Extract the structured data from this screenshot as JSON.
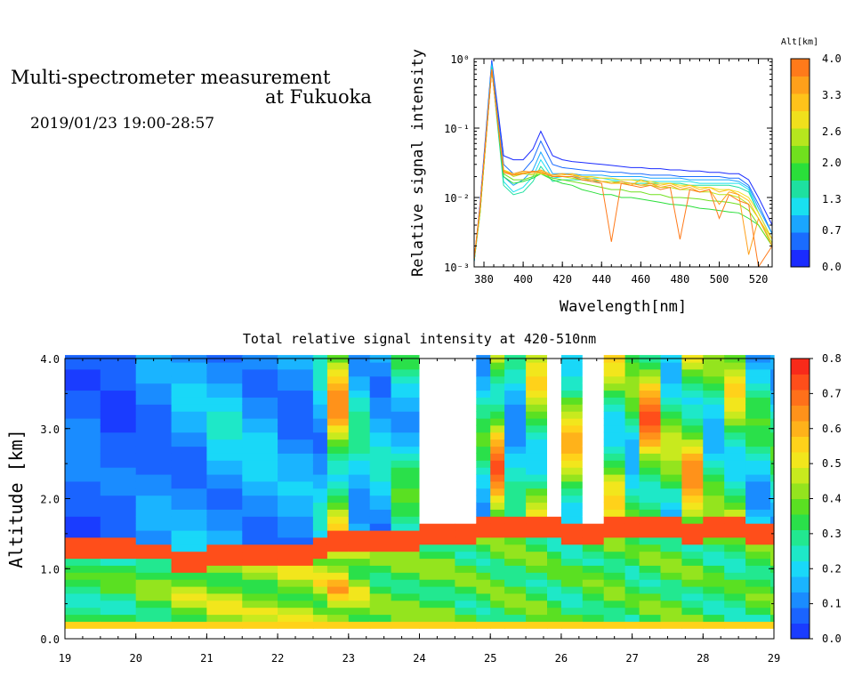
{
  "header": {
    "title_line1": "Multi-spectrometer measurement",
    "title_line2": "at Fukuoka",
    "date_range": "2019/01/23 19:00-28:57"
  },
  "chart_data": [
    {
      "type": "line",
      "title": "",
      "xlabel": "Wavelength[nm]",
      "ylabel": "Relative signal intensity",
      "xlim": [
        375,
        527
      ],
      "ylim": [
        0.001,
        1
      ],
      "yscale": "log",
      "x_ticks": [
        "380",
        "400",
        "420",
        "440",
        "460",
        "480",
        "500",
        "520"
      ],
      "y_ticks": [
        "10⁻³",
        "10⁻²",
        "10⁻¹",
        "10⁰"
      ],
      "grid": false,
      "colorbar": {
        "title": "Alt[km]",
        "range": [
          0,
          4
        ],
        "ticks": [
          "0.0",
          "0.7",
          "1.3",
          "2.0",
          "2.6",
          "3.3",
          "4.0"
        ],
        "colors": [
          "#1a2bff",
          "#1a6cff",
          "#1aa6ff",
          "#19e0f0",
          "#1ee0a0",
          "#2adf3a",
          "#70e01e",
          "#b6e61e",
          "#f0e01c",
          "#ffc21a",
          "#ffa01a",
          "#ff7a1a"
        ]
      },
      "x": [
        375,
        378,
        384,
        390,
        395,
        400,
        405,
        409,
        415,
        420,
        425,
        430,
        435,
        440,
        445,
        450,
        455,
        460,
        465,
        470,
        475,
        480,
        485,
        490,
        495,
        500,
        505,
        510,
        515,
        520,
        527
      ],
      "series": [
        {
          "altitude": 0.0,
          "color": "#1a2bff",
          "values": [
            0.0012,
            0.008,
            0.95,
            0.04,
            0.035,
            0.035,
            0.05,
            0.09,
            0.04,
            0.035,
            0.033,
            0.032,
            0.031,
            0.03,
            0.029,
            0.028,
            0.027,
            0.027,
            0.026,
            0.026,
            0.025,
            0.025,
            0.024,
            0.024,
            0.023,
            0.023,
            0.022,
            0.022,
            0.018,
            0.01,
            0.004
          ]
        },
        {
          "altitude": 0.35,
          "color": "#1a6cff",
          "values": [
            0.0012,
            0.007,
            0.9,
            0.03,
            0.022,
            0.024,
            0.035,
            0.065,
            0.03,
            0.027,
            0.026,
            0.025,
            0.024,
            0.024,
            0.023,
            0.023,
            0.022,
            0.022,
            0.021,
            0.021,
            0.021,
            0.02,
            0.02,
            0.02,
            0.02,
            0.02,
            0.019,
            0.019,
            0.015,
            0.008,
            0.003
          ]
        },
        {
          "altitude": 0.7,
          "color": "#1aa6ff",
          "values": [
            0.0012,
            0.007,
            0.85,
            0.02,
            0.015,
            0.018,
            0.025,
            0.045,
            0.022,
            0.022,
            0.022,
            0.021,
            0.021,
            0.021,
            0.02,
            0.02,
            0.02,
            0.02,
            0.019,
            0.019,
            0.019,
            0.019,
            0.018,
            0.018,
            0.018,
            0.018,
            0.018,
            0.017,
            0.014,
            0.007,
            0.003
          ]
        },
        {
          "altitude": 1.0,
          "color": "#19e0f0",
          "values": [
            0.0012,
            0.006,
            0.8,
            0.017,
            0.012,
            0.014,
            0.02,
            0.035,
            0.019,
            0.02,
            0.02,
            0.019,
            0.019,
            0.019,
            0.018,
            0.018,
            0.018,
            0.018,
            0.017,
            0.017,
            0.017,
            0.017,
            0.017,
            0.016,
            0.016,
            0.016,
            0.016,
            0.016,
            0.013,
            0.006,
            0.0025
          ]
        },
        {
          "altitude": 1.3,
          "color": "#1ee0a0",
          "values": [
            0.0012,
            0.006,
            0.75,
            0.015,
            0.011,
            0.012,
            0.017,
            0.028,
            0.017,
            0.018,
            0.018,
            0.018,
            0.017,
            0.017,
            0.017,
            0.017,
            0.016,
            0.016,
            0.016,
            0.016,
            0.016,
            0.016,
            0.015,
            0.015,
            0.015,
            0.015,
            0.015,
            0.014,
            0.012,
            0.006,
            0.0025
          ]
        },
        {
          "altitude": 1.65,
          "color": "#2adf3a",
          "values": [
            0.0013,
            0.006,
            0.7,
            0.02,
            0.016,
            0.017,
            0.019,
            0.022,
            0.018,
            0.016,
            0.015,
            0.013,
            0.012,
            0.011,
            0.011,
            0.01,
            0.01,
            0.0095,
            0.009,
            0.0085,
            0.008,
            0.0078,
            0.0075,
            0.007,
            0.0068,
            0.0065,
            0.0062,
            0.006,
            0.005,
            0.004,
            0.002
          ]
        },
        {
          "altitude": 2.0,
          "color": "#70e01e",
          "values": [
            0.0013,
            0.006,
            0.7,
            0.022,
            0.018,
            0.018,
            0.02,
            0.022,
            0.019,
            0.018,
            0.017,
            0.016,
            0.015,
            0.014,
            0.013,
            0.013,
            0.012,
            0.012,
            0.011,
            0.011,
            0.01,
            0.01,
            0.0098,
            0.0095,
            0.009,
            0.0088,
            0.0085,
            0.008,
            0.0065,
            0.004,
            0.002
          ]
        },
        {
          "altitude": 2.3,
          "color": "#b6e61e",
          "values": [
            0.0013,
            0.006,
            0.7,
            0.025,
            0.02,
            0.022,
            0.021,
            0.023,
            0.02,
            0.02,
            0.019,
            0.018,
            0.018,
            0.017,
            0.017,
            0.016,
            0.016,
            0.015,
            0.015,
            0.014,
            0.014,
            0.013,
            0.013,
            0.012,
            0.012,
            0.011,
            0.011,
            0.01,
            0.008,
            0.005,
            0.0022
          ]
        },
        {
          "altitude": 2.6,
          "color": "#f0e01c",
          "values": [
            0.0013,
            0.007,
            0.7,
            0.025,
            0.022,
            0.022,
            0.024,
            0.022,
            0.021,
            0.022,
            0.021,
            0.02,
            0.02,
            0.019,
            0.019,
            0.018,
            0.018,
            0.017,
            0.017,
            0.016,
            0.016,
            0.015,
            0.015,
            0.014,
            0.014,
            0.013,
            0.013,
            0.012,
            0.01,
            0.006,
            0.0025
          ]
        },
        {
          "altitude": 3.0,
          "color": "#ffc21a",
          "values": [
            0.0013,
            0.007,
            0.7,
            0.024,
            0.021,
            0.023,
            0.022,
            0.024,
            0.02,
            0.021,
            0.022,
            0.02,
            0.019,
            0.017,
            0.016,
            0.016,
            0.015,
            0.018,
            0.016,
            0.015,
            0.016,
            0.014,
            0.015,
            0.013,
            0.014,
            0.012,
            0.013,
            0.011,
            0.009,
            0.005,
            0.0025
          ]
        },
        {
          "altitude": 3.3,
          "color": "#ffa01a",
          "values": [
            0.0013,
            0.007,
            0.7,
            0.024,
            0.022,
            0.024,
            0.023,
            0.025,
            0.021,
            0.022,
            0.021,
            0.019,
            0.018,
            0.017,
            0.016,
            0.017,
            0.016,
            0.015,
            0.016,
            0.014,
            0.015,
            0.013,
            0.014,
            0.012,
            0.013,
            0.008,
            0.012,
            0.011,
            0.0015,
            0.005,
            0.002
          ]
        },
        {
          "altitude": 3.7,
          "color": "#ff7a1a",
          "values": [
            0.0013,
            0.007,
            0.7,
            0.023,
            0.021,
            0.022,
            0.024,
            0.023,
            0.02,
            0.02,
            0.02,
            0.018,
            0.017,
            0.016,
            0.0023,
            0.016,
            0.015,
            0.014,
            0.015,
            0.013,
            0.014,
            0.0025,
            0.013,
            0.012,
            0.013,
            0.005,
            0.011,
            0.009,
            0.008,
            0.001,
            0.002
          ]
        }
      ]
    },
    {
      "type": "heatmap",
      "title": "Total relative signal intensity at 420-510nm",
      "xlabel": "",
      "ylabel": "Altitude [km]",
      "xlim": [
        19,
        29
      ],
      "ylim": [
        0,
        4
      ],
      "x_ticks": [
        "19",
        "20",
        "21",
        "22",
        "23",
        "24",
        "25",
        "26",
        "27",
        "28",
        "29"
      ],
      "y_ticks": [
        "0.0",
        "1.0",
        "2.0",
        "3.0",
        "4.0"
      ],
      "colorbar": {
        "range": [
          0,
          0.8
        ],
        "ticks": [
          "0.0",
          "0.1",
          "0.2",
          "0.3",
          "0.4",
          "0.5",
          "0.6",
          "0.7",
          "0.8"
        ],
        "colors": [
          "#1a3cff",
          "#1a64ff",
          "#1a8cff",
          "#1ab4ff",
          "#19d8f8",
          "#1ee8c8",
          "#22e890",
          "#2ae04a",
          "#5ae022",
          "#94e41e",
          "#c8ea1e",
          "#f2e61c",
          "#ffd21a",
          "#ffb21a",
          "#ff921a",
          "#ff701a",
          "#ff4e1a",
          "#f82a1a"
        ],
        "missing_color": "#ffffff"
      },
      "time_h": [
        19.0,
        19.5,
        20.0,
        20.5,
        21.0,
        21.5,
        22.0,
        22.5,
        22.7,
        23.0,
        23.3,
        23.6,
        24.0,
        24.5,
        24.8,
        25.0,
        25.2,
        25.5,
        25.8,
        26.0,
        26.3,
        26.6,
        26.9,
        27.1,
        27.4,
        27.7,
        28.0,
        28.3,
        28.6,
        28.95
      ],
      "boundary_layer_top_km": [
        1.28,
        1.25,
        1.2,
        1.05,
        1.1,
        1.15,
        1.18,
        1.22,
        1.4,
        1.35,
        1.35,
        1.4,
        1.42,
        1.48,
        1.55,
        1.58,
        1.6,
        1.55,
        1.55,
        1.5,
        1.5,
        1.52,
        1.55,
        1.6,
        1.55,
        1.5,
        1.55,
        1.55,
        1.5,
        1.5
      ],
      "free_troposphere_intensity": [
        0.1,
        0.08,
        0.12,
        0.16,
        0.2,
        0.18,
        0.15,
        0.2,
        0.55,
        0.25,
        0.2,
        0.3,
        null,
        null,
        0.3,
        0.6,
        0.25,
        0.45,
        null,
        0.5,
        null,
        0.45,
        0.35,
        0.6,
        0.4,
        0.55,
        0.35,
        0.45,
        0.3,
        0.3
      ],
      "boundary_layer_intensity": [
        0.35,
        0.38,
        0.42,
        0.48,
        0.5,
        0.48,
        0.5,
        0.52,
        0.6,
        0.5,
        0.42,
        0.42,
        0.42,
        0.4,
        0.4,
        0.42,
        0.42,
        0.4,
        0.38,
        0.38,
        0.4,
        0.42,
        0.38,
        0.4,
        0.42,
        0.4,
        0.38,
        0.36,
        0.4,
        0.42
      ]
    }
  ]
}
